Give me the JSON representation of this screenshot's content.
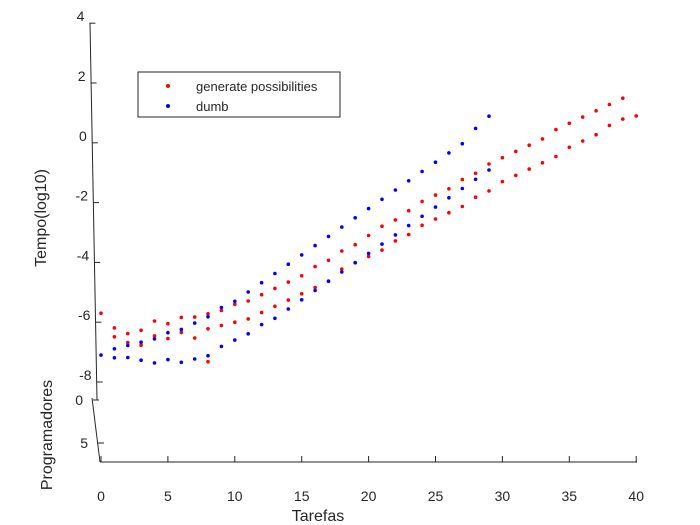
{
  "chart_data": {
    "type": "scatter",
    "view": "3d",
    "xlabel": "Tarefas",
    "ylabel": "Programadores",
    "zlabel": "Tempo(log10)",
    "x_ticks": [
      "0",
      "5",
      "10",
      "15",
      "20",
      "25",
      "30",
      "35",
      "40"
    ],
    "y_ticks": [
      "0",
      "5"
    ],
    "z_ticks": [
      "4",
      "2",
      "0",
      "-2",
      "-4",
      "-6",
      "-8"
    ],
    "xlim": [
      0,
      40
    ],
    "zlim": [
      -8,
      4
    ],
    "legend_position": "top-left",
    "series": [
      {
        "name": "generate possibilities",
        "color": "#ff0000",
        "points": [
          [
            0,
            -5.7
          ],
          [
            1,
            -6.2
          ],
          [
            1,
            -6.5
          ],
          [
            2,
            -6.4
          ],
          [
            2,
            -6.7
          ],
          [
            3,
            -6.3
          ],
          [
            3,
            -6.8
          ],
          [
            4,
            -6.0
          ],
          [
            4,
            -6.5
          ],
          [
            5,
            -6.1
          ],
          [
            5,
            -6.6
          ],
          [
            6,
            -5.9
          ],
          [
            6,
            -6.4
          ],
          [
            7,
            -5.9
          ],
          [
            7,
            -6.6
          ],
          [
            8,
            -5.8
          ],
          [
            8,
            -6.3
          ],
          [
            8,
            -7.4
          ],
          [
            9,
            -5.7
          ],
          [
            9,
            -6.2
          ],
          [
            10,
            -5.5
          ],
          [
            10,
            -6.1
          ],
          [
            11,
            -5.4
          ],
          [
            11,
            -6.0
          ],
          [
            12,
            -5.2
          ],
          [
            12,
            -5.8
          ],
          [
            13,
            -5.0
          ],
          [
            13,
            -5.6
          ],
          [
            14,
            -4.8
          ],
          [
            14,
            -5.4
          ],
          [
            15,
            -4.6
          ],
          [
            15,
            -5.2
          ],
          [
            16,
            -4.3
          ],
          [
            16,
            -5.0
          ],
          [
            17,
            -4.1
          ],
          [
            17,
            -4.8
          ],
          [
            18,
            -3.8
          ],
          [
            18,
            -4.4
          ],
          [
            19,
            -3.6
          ],
          [
            19,
            -4.2
          ],
          [
            20,
            -3.3
          ],
          [
            20,
            -4.0
          ],
          [
            21,
            -3.0
          ],
          [
            21,
            -3.8
          ],
          [
            22,
            -2.8
          ],
          [
            22,
            -3.5
          ],
          [
            23,
            -2.5
          ],
          [
            23,
            -3.3
          ],
          [
            24,
            -2.2
          ],
          [
            24,
            -3.0
          ],
          [
            25,
            -2.0
          ],
          [
            25,
            -2.8
          ],
          [
            26,
            -1.8
          ],
          [
            26,
            -2.6
          ],
          [
            27,
            -1.5
          ],
          [
            27,
            -2.4
          ],
          [
            28,
            -1.3
          ],
          [
            28,
            -2.1
          ],
          [
            29,
            -1.0
          ],
          [
            29,
            -1.9
          ],
          [
            30,
            -0.8
          ],
          [
            30,
            -1.6
          ],
          [
            31,
            -0.6
          ],
          [
            31,
            -1.4
          ],
          [
            32,
            -0.4
          ],
          [
            32,
            -1.2
          ],
          [
            33,
            -0.2
          ],
          [
            33,
            -1.0
          ],
          [
            34,
            0.1
          ],
          [
            34,
            -0.8
          ],
          [
            35,
            0.3
          ],
          [
            35,
            -0.5
          ],
          [
            36,
            0.5
          ],
          [
            36,
            -0.3
          ],
          [
            37,
            0.7
          ],
          [
            37,
            -0.1
          ],
          [
            38,
            0.9
          ],
          [
            38,
            0.2
          ],
          [
            39,
            1.1
          ],
          [
            39,
            0.4
          ],
          [
            40,
            0.5
          ]
        ]
      },
      {
        "name": "dumb",
        "color": "#0000ff",
        "points": [
          [
            0,
            -7.1
          ],
          [
            1,
            -6.9
          ],
          [
            1,
            -7.2
          ],
          [
            2,
            -6.8
          ],
          [
            2,
            -7.2
          ],
          [
            3,
            -6.7
          ],
          [
            3,
            -7.3
          ],
          [
            4,
            -6.6
          ],
          [
            4,
            -7.4
          ],
          [
            5,
            -6.4
          ],
          [
            5,
            -7.3
          ],
          [
            6,
            -6.3
          ],
          [
            6,
            -7.4
          ],
          [
            7,
            -6.1
          ],
          [
            7,
            -7.3
          ],
          [
            8,
            -5.9
          ],
          [
            8,
            -7.2
          ],
          [
            9,
            -5.6
          ],
          [
            9,
            -6.9
          ],
          [
            10,
            -5.4
          ],
          [
            10,
            -6.7
          ],
          [
            11,
            -5.1
          ],
          [
            11,
            -6.5
          ],
          [
            12,
            -4.8
          ],
          [
            12,
            -6.2
          ],
          [
            13,
            -4.5
          ],
          [
            13,
            -6.0
          ],
          [
            14,
            -4.2
          ],
          [
            14,
            -5.7
          ],
          [
            15,
            -3.9
          ],
          [
            15,
            -5.4
          ],
          [
            16,
            -3.6
          ],
          [
            16,
            -5.1
          ],
          [
            17,
            -3.3
          ],
          [
            17,
            -4.8
          ],
          [
            18,
            -3.0
          ],
          [
            18,
            -4.5
          ],
          [
            19,
            -2.7
          ],
          [
            19,
            -4.2
          ],
          [
            20,
            -2.4
          ],
          [
            20,
            -3.9
          ],
          [
            21,
            -2.1
          ],
          [
            21,
            -3.6
          ],
          [
            22,
            -1.8
          ],
          [
            22,
            -3.3
          ],
          [
            23,
            -1.5
          ],
          [
            23,
            -3.0
          ],
          [
            24,
            -1.2
          ],
          [
            24,
            -2.7
          ],
          [
            25,
            -0.9
          ],
          [
            25,
            -2.4
          ],
          [
            26,
            -0.6
          ],
          [
            26,
            -2.1
          ],
          [
            27,
            -0.3
          ],
          [
            27,
            -1.8
          ],
          [
            28,
            0.2
          ],
          [
            28,
            -1.5
          ],
          [
            29,
            0.6
          ],
          [
            29,
            -1.2
          ]
        ]
      }
    ]
  }
}
